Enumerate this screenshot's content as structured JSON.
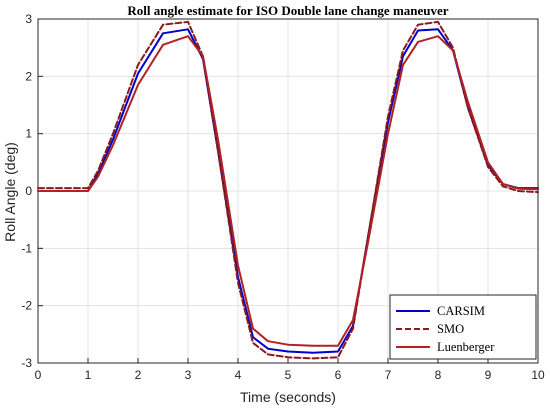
{
  "chart_data": {
    "type": "line",
    "title": "Roll angle estimate for ISO Double lane change maneuver",
    "xlabel": "Time (seconds)",
    "ylabel": "Roll Angle (deg)",
    "xlim": [
      0,
      10
    ],
    "ylim": [
      -3,
      3
    ],
    "x_ticks": [
      "0",
      "1",
      "2",
      "3",
      "4",
      "5",
      "6",
      "7",
      "8",
      "9",
      "10"
    ],
    "y_ticks": [
      "-3",
      "-2",
      "-1",
      "0",
      "1",
      "2",
      "3"
    ],
    "grid": true,
    "legend_position": "bottom-right",
    "series": [
      {
        "name": "CARSIM",
        "color": "#0000cc",
        "dash": "solid",
        "x": [
          0,
          1.0,
          1.2,
          1.5,
          2.0,
          2.5,
          3.0,
          3.3,
          3.6,
          4.0,
          4.3,
          4.6,
          5.0,
          5.5,
          6.0,
          6.3,
          6.6,
          7.0,
          7.3,
          7.6,
          8.0,
          8.3,
          8.6,
          9.0,
          9.3,
          9.6,
          10.0
        ],
        "y": [
          0.0,
          0.0,
          0.3,
          0.9,
          2.05,
          2.75,
          2.82,
          2.3,
          0.7,
          -1.5,
          -2.55,
          -2.75,
          -2.8,
          -2.82,
          -2.8,
          -2.35,
          -0.8,
          1.2,
          2.35,
          2.8,
          2.82,
          2.45,
          1.45,
          0.45,
          0.12,
          0.05,
          0.05
        ]
      },
      {
        "name": "SMO",
        "color": "#8b1a1a",
        "dash": "dashed",
        "x": [
          0,
          1.0,
          1.2,
          1.5,
          2.0,
          2.5,
          3.0,
          3.3,
          3.6,
          4.0,
          4.3,
          4.6,
          5.0,
          5.5,
          6.0,
          6.3,
          6.6,
          7.0,
          7.3,
          7.6,
          8.0,
          8.3,
          8.6,
          9.0,
          9.3,
          9.6,
          10.0
        ],
        "y": [
          0.05,
          0.05,
          0.35,
          1.0,
          2.2,
          2.9,
          2.95,
          2.35,
          0.7,
          -1.6,
          -2.65,
          -2.85,
          -2.9,
          -2.92,
          -2.9,
          -2.4,
          -0.8,
          1.3,
          2.45,
          2.9,
          2.95,
          2.5,
          1.45,
          0.42,
          0.08,
          0.0,
          -0.02
        ]
      },
      {
        "name": "Luenberger",
        "color": "#b22222",
        "dash": "solid",
        "x": [
          0,
          1.0,
          1.2,
          1.5,
          2.0,
          2.5,
          3.0,
          3.3,
          3.6,
          4.0,
          4.3,
          4.6,
          5.0,
          5.5,
          6.0,
          6.3,
          6.6,
          7.0,
          7.3,
          7.6,
          8.0,
          8.3,
          8.6,
          9.0,
          9.3,
          9.6,
          10.0
        ],
        "y": [
          0.0,
          0.0,
          0.25,
          0.8,
          1.85,
          2.55,
          2.7,
          2.35,
          0.9,
          -1.3,
          -2.4,
          -2.62,
          -2.68,
          -2.7,
          -2.7,
          -2.25,
          -0.9,
          1.0,
          2.2,
          2.6,
          2.7,
          2.45,
          1.55,
          0.5,
          0.12,
          0.04,
          0.03
        ]
      }
    ]
  }
}
